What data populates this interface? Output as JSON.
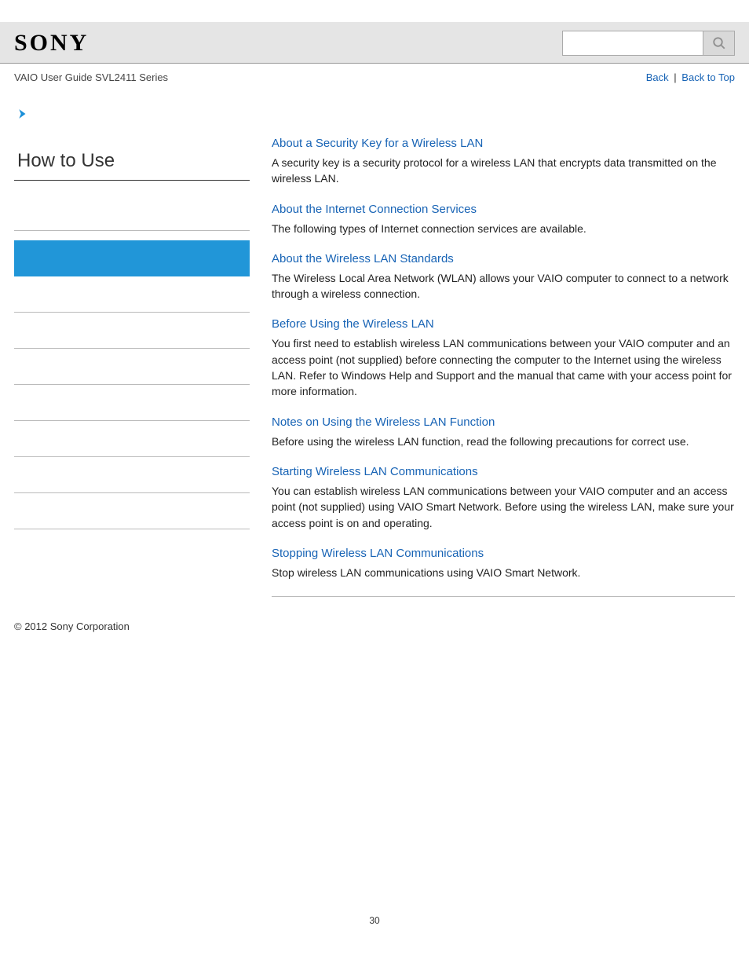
{
  "header": {
    "logo_text": "SONY",
    "search_placeholder": ""
  },
  "subheader": {
    "breadcrumb": "VAIO User Guide SVL2411 Series",
    "back_label": "Back",
    "top_label": "Back to Top",
    "separator": "|"
  },
  "sidebar": {
    "title": "How to Use",
    "active_index": 1,
    "item_count": 9,
    "colors": {
      "active_bg": "#2196d8",
      "divider": "#bbbbbb",
      "title_border": "#333333"
    },
    "chevron_color": "#1a8fd8"
  },
  "topics": [
    {
      "title": "About a Security Key for a Wireless LAN",
      "desc": "A security key is a security protocol for a wireless LAN that encrypts data transmitted on the wireless LAN."
    },
    {
      "title": "About the Internet Connection Services",
      "desc": "The following types of Internet connection services are available."
    },
    {
      "title": "About the Wireless LAN Standards",
      "desc": "The Wireless Local Area Network (WLAN) allows your VAIO computer to connect to a network through a wireless connection."
    },
    {
      "title": "Before Using the Wireless LAN",
      "desc": "You first need to establish wireless LAN communications between your VAIO computer and an access point (not supplied) before connecting the computer to the Internet using the wireless LAN. Refer to Windows Help and Support and the manual that came with your access point for more information."
    },
    {
      "title": "Notes on Using the Wireless LAN Function",
      "desc": "Before using the wireless LAN function, read the following precautions for correct use."
    },
    {
      "title": "Starting Wireless LAN Communications",
      "desc": "You can establish wireless LAN communications between your VAIO computer and an access point (not supplied) using VAIO Smart Network. Before using the wireless LAN, make sure your access point is on and operating."
    },
    {
      "title": "Stopping Wireless LAN Communications",
      "desc": "Stop wireless LAN communications using VAIO Smart Network."
    }
  ],
  "footer": {
    "copyright": "© 2012 Sony Corporation",
    "page_number": "30"
  },
  "colors": {
    "link": "#1763b5",
    "header_bg": "#e5e5e5",
    "text": "#333333",
    "background": "#ffffff"
  },
  "typography": {
    "body_fontsize": 14,
    "sidebar_title_fontsize": 24,
    "topic_title_fontsize": 15,
    "logo_fontsize": 30
  }
}
